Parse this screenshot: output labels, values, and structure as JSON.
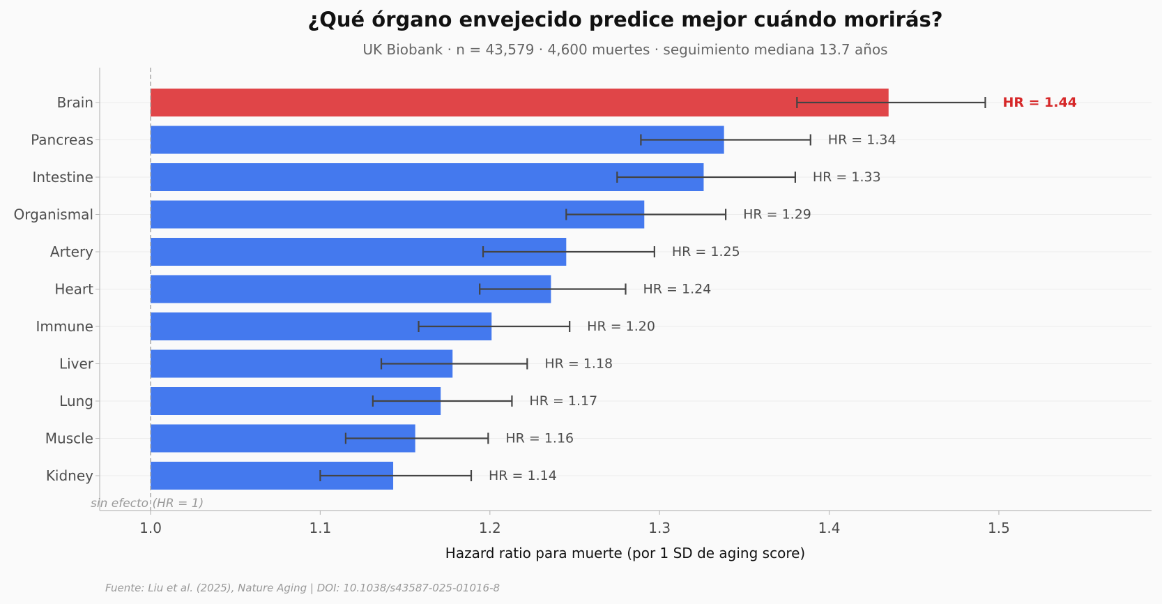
{
  "chart_data": {
    "type": "bar",
    "orientation": "horizontal",
    "title": "¿Qué órgano envejecido predice mejor cuándo morirás?",
    "subtitle": "UK Biobank · n = 43,579 · 4,600 muertes · seguimiento mediana 13.7 años",
    "xlabel": "Hazard ratio para muerte (por 1 SD de aging score)",
    "ylabel": "",
    "xlim": [
      0.97,
      1.59
    ],
    "xticks": [
      1.0,
      1.1,
      1.2,
      1.3,
      1.4,
      1.5
    ],
    "xtick_labels": [
      "1.0",
      "1.1",
      "1.2",
      "1.3",
      "1.4",
      "1.5"
    ],
    "bar_base": 1.0,
    "reference_line": {
      "value": 1.0,
      "style": "dashed",
      "label": "sin efecto (HR = 1)"
    },
    "categories": [
      "Brain",
      "Pancreas",
      "Intestine",
      "Organismal",
      "Artery",
      "Heart",
      "Immune",
      "Liver",
      "Lung",
      "Muscle",
      "Kidney"
    ],
    "values": [
      1.435,
      1.338,
      1.326,
      1.291,
      1.245,
      1.236,
      1.201,
      1.178,
      1.171,
      1.156,
      1.143
    ],
    "ci_low": [
      1.381,
      1.289,
      1.275,
      1.245,
      1.196,
      1.194,
      1.158,
      1.136,
      1.131,
      1.115,
      1.1
    ],
    "ci_high": [
      1.492,
      1.389,
      1.38,
      1.339,
      1.297,
      1.28,
      1.247,
      1.222,
      1.213,
      1.199,
      1.189
    ],
    "value_labels": [
      "HR = 1.44",
      "HR = 1.34",
      "HR = 1.33",
      "HR = 1.29",
      "HR = 1.25",
      "HR = 1.24",
      "HR = 1.20",
      "HR = 1.18",
      "HR = 1.17",
      "HR = 1.16",
      "HR = 1.14"
    ],
    "highlight_index": 0,
    "grid": "horizontal-light",
    "legend": "none"
  },
  "colors": {
    "bar": "#4479ee",
    "highlight_bar": "#e04548",
    "highlight_text": "#d62728",
    "error_bar": "#444444",
    "axis": "#bbbbbb",
    "grid": "#ececec",
    "background": "#fafafa"
  },
  "source": "Fuente: Liu et al. (2025), Nature Aging | DOI: 10.1038/s43587-025-01016-8"
}
